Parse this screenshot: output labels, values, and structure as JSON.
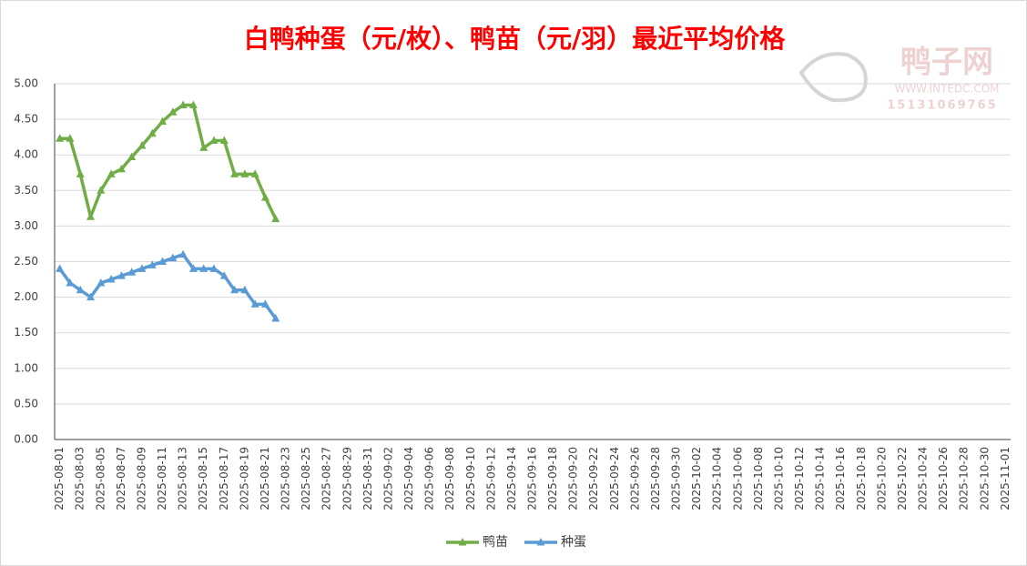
{
  "chart_data": {
    "type": "line",
    "title": "白鸭种蛋（元/枚）、鸭苗（元/羽）最近平均价格",
    "watermark": {
      "brand": "鸭子网",
      "url": "WWW.INTEDC.COM",
      "phone": "15131069765"
    },
    "categories": [
      "2025-08-01",
      null,
      "2025-08-03",
      null,
      "2025-08-05",
      null,
      "2025-08-07",
      null,
      "2025-08-09",
      null,
      "2025-08-11",
      null,
      "2025-08-13",
      null,
      "2025-08-15",
      null,
      "2025-08-17",
      null,
      "2025-08-19",
      null,
      "2025-08-21",
      null,
      "2025-08-23",
      null,
      "2025-08-25",
      null,
      "2025-08-27",
      null,
      "2025-08-29",
      null,
      "2025-08-31",
      null,
      "2025-09-02",
      null,
      "2025-09-04",
      null,
      "2025-09-06",
      null,
      "2025-09-08",
      null,
      "2025-09-10",
      null,
      "2025-09-12",
      null,
      "2025-09-14",
      null,
      "2025-09-16",
      null,
      "2025-09-18",
      null,
      "2025-09-20",
      null,
      "2025-09-22",
      null,
      "2025-09-24",
      null,
      "2025-09-26",
      null,
      "2025-09-28",
      null,
      "2025-09-30",
      null,
      "2025-10-02",
      null,
      "2025-10-04",
      null,
      "2025-10-06",
      null,
      "2025-10-08",
      null,
      "2025-10-10",
      null,
      "2025-10-12",
      null,
      "2025-10-14",
      null,
      "2025-10-16",
      null,
      "2025-10-18",
      null,
      "2025-10-20",
      null,
      "2025-10-22",
      null,
      "2025-10-24",
      null,
      "2025-10-26",
      null,
      "2025-10-28",
      null,
      "2025-10-30",
      null,
      "2025-11-01"
    ],
    "series": [
      {
        "name": "鸭苗",
        "color": "#70ad47",
        "values": [
          4.23,
          4.23,
          3.73,
          3.13,
          3.5,
          3.73,
          3.8,
          3.97,
          4.13,
          4.3,
          4.47,
          4.6,
          4.7,
          4.7,
          4.1,
          4.2,
          4.2,
          3.73,
          3.73,
          3.73,
          3.4,
          3.1,
          null,
          null,
          null,
          null,
          null,
          null,
          null,
          null,
          null,
          null,
          null,
          null,
          null,
          null,
          null,
          null,
          null,
          null,
          null,
          null,
          null,
          null,
          null,
          null,
          null,
          null,
          null,
          null,
          null,
          null,
          null,
          null,
          null,
          null,
          null,
          null,
          null,
          null,
          null,
          null,
          null,
          null,
          null,
          null,
          null,
          null,
          null,
          null,
          null,
          null,
          null,
          null,
          null,
          null,
          null,
          null,
          null,
          null,
          null,
          null,
          null,
          null,
          null,
          null,
          null,
          null,
          null,
          null,
          null,
          null,
          null
        ]
      },
      {
        "name": "种蛋",
        "color": "#5b9bd5",
        "values": [
          2.4,
          2.2,
          2.1,
          2.0,
          2.2,
          2.25,
          2.3,
          2.35,
          2.4,
          2.45,
          2.5,
          2.55,
          2.6,
          2.4,
          2.4,
          2.4,
          2.3,
          2.1,
          2.1,
          1.9,
          1.9,
          1.7,
          null,
          null,
          null,
          null,
          null,
          null,
          null,
          null,
          null,
          null,
          null,
          null,
          null,
          null,
          null,
          null,
          null,
          null,
          null,
          null,
          null,
          null,
          null,
          null,
          null,
          null,
          null,
          null,
          null,
          null,
          null,
          null,
          null,
          null,
          null,
          null,
          null,
          null,
          null,
          null,
          null,
          null,
          null,
          null,
          null,
          null,
          null,
          null,
          null,
          null,
          null,
          null,
          null,
          null,
          null,
          null,
          null,
          null,
          null,
          null,
          null,
          null,
          null,
          null,
          null,
          null,
          null,
          null,
          null,
          null,
          null
        ]
      }
    ],
    "ylim": [
      0,
      5
    ],
    "yticks": [
      {
        "value": 0,
        "label": "0.00"
      },
      {
        "value": 0.5,
        "label": "0.50"
      },
      {
        "value": 1,
        "label": "1.00"
      },
      {
        "value": 1.5,
        "label": "1.50"
      },
      {
        "value": 2,
        "label": "2.00"
      },
      {
        "value": 2.5,
        "label": "2.50"
      },
      {
        "value": 3,
        "label": "3.00"
      },
      {
        "value": 3.5,
        "label": "3.50"
      },
      {
        "value": 4,
        "label": "4.00"
      },
      {
        "value": 4.5,
        "label": "4.50"
      },
      {
        "value": 5,
        "label": "5.00"
      }
    ],
    "grid": true,
    "legend": "bottom"
  }
}
